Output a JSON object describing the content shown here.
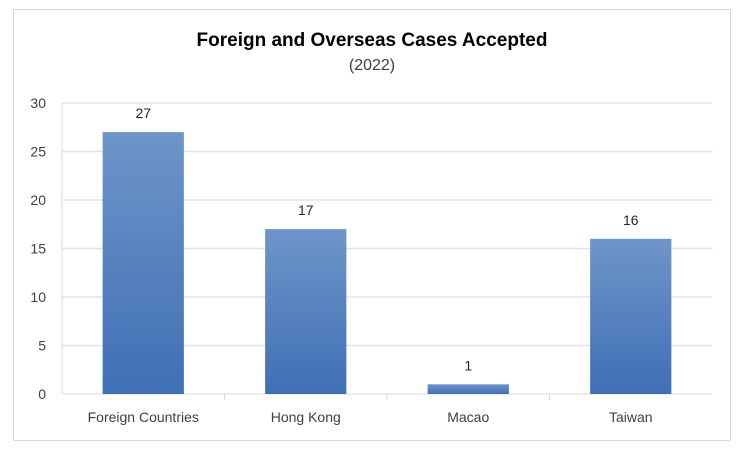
{
  "chart_data": {
    "type": "bar",
    "title": "Foreign and Overseas Cases Accepted",
    "subtitle": "(2022)",
    "categories": [
      "Foreign Countries",
      "Hong Kong",
      "Macao",
      "Taiwan"
    ],
    "values": [
      27,
      17,
      1,
      16
    ],
    "data_labels": [
      "27",
      "17",
      "1",
      "16"
    ],
    "yticks": [
      "0",
      "5",
      "10",
      "15",
      "20",
      "25",
      "30"
    ],
    "ylim": [
      0,
      30
    ],
    "xlabel": "",
    "ylabel": "",
    "grid": true,
    "legend": "none",
    "bar_color_top": "#6f95c9",
    "bar_color_bottom": "#3f6fb5",
    "grid_color": "#d9e6f2"
  }
}
